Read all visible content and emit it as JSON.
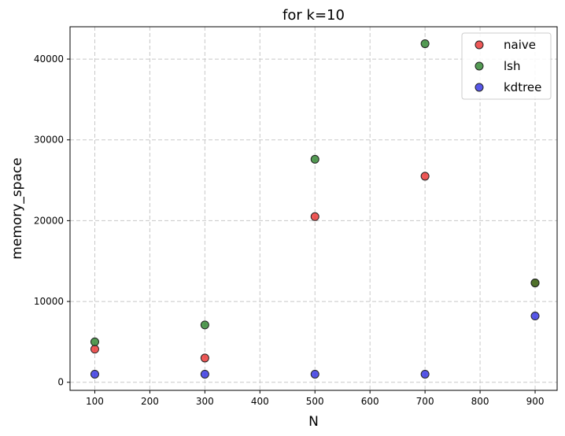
{
  "chart_data": {
    "type": "scatter",
    "title": "for k=10",
    "xlabel": "N",
    "ylabel": "memory_space",
    "xlim": [
      55,
      940
    ],
    "ylim": [
      -1000,
      44000
    ],
    "xticks": [
      100,
      200,
      300,
      400,
      500,
      600,
      700,
      800,
      900
    ],
    "yticks": [
      0,
      10000,
      20000,
      30000,
      40000
    ],
    "grid": true,
    "legend_position": "top-right",
    "series": [
      {
        "name": "naive",
        "color": "#e8201f",
        "points": [
          {
            "x": 100,
            "y": 4100
          },
          {
            "x": 300,
            "y": 3000
          },
          {
            "x": 500,
            "y": 20500
          },
          {
            "x": 700,
            "y": 25500
          },
          {
            "x": 900,
            "y": 12300
          }
        ]
      },
      {
        "name": "lsh",
        "color": "#1b7a1b",
        "points": [
          {
            "x": 100,
            "y": 5000
          },
          {
            "x": 300,
            "y": 7100
          },
          {
            "x": 500,
            "y": 27600
          },
          {
            "x": 700,
            "y": 41900
          },
          {
            "x": 900,
            "y": 12300
          }
        ]
      },
      {
        "name": "kdtree",
        "color": "#1f1fe0",
        "points": [
          {
            "x": 100,
            "y": 1000
          },
          {
            "x": 300,
            "y": 1000
          },
          {
            "x": 500,
            "y": 1000
          },
          {
            "x": 700,
            "y": 1000
          },
          {
            "x": 900,
            "y": 8200
          }
        ]
      }
    ]
  }
}
